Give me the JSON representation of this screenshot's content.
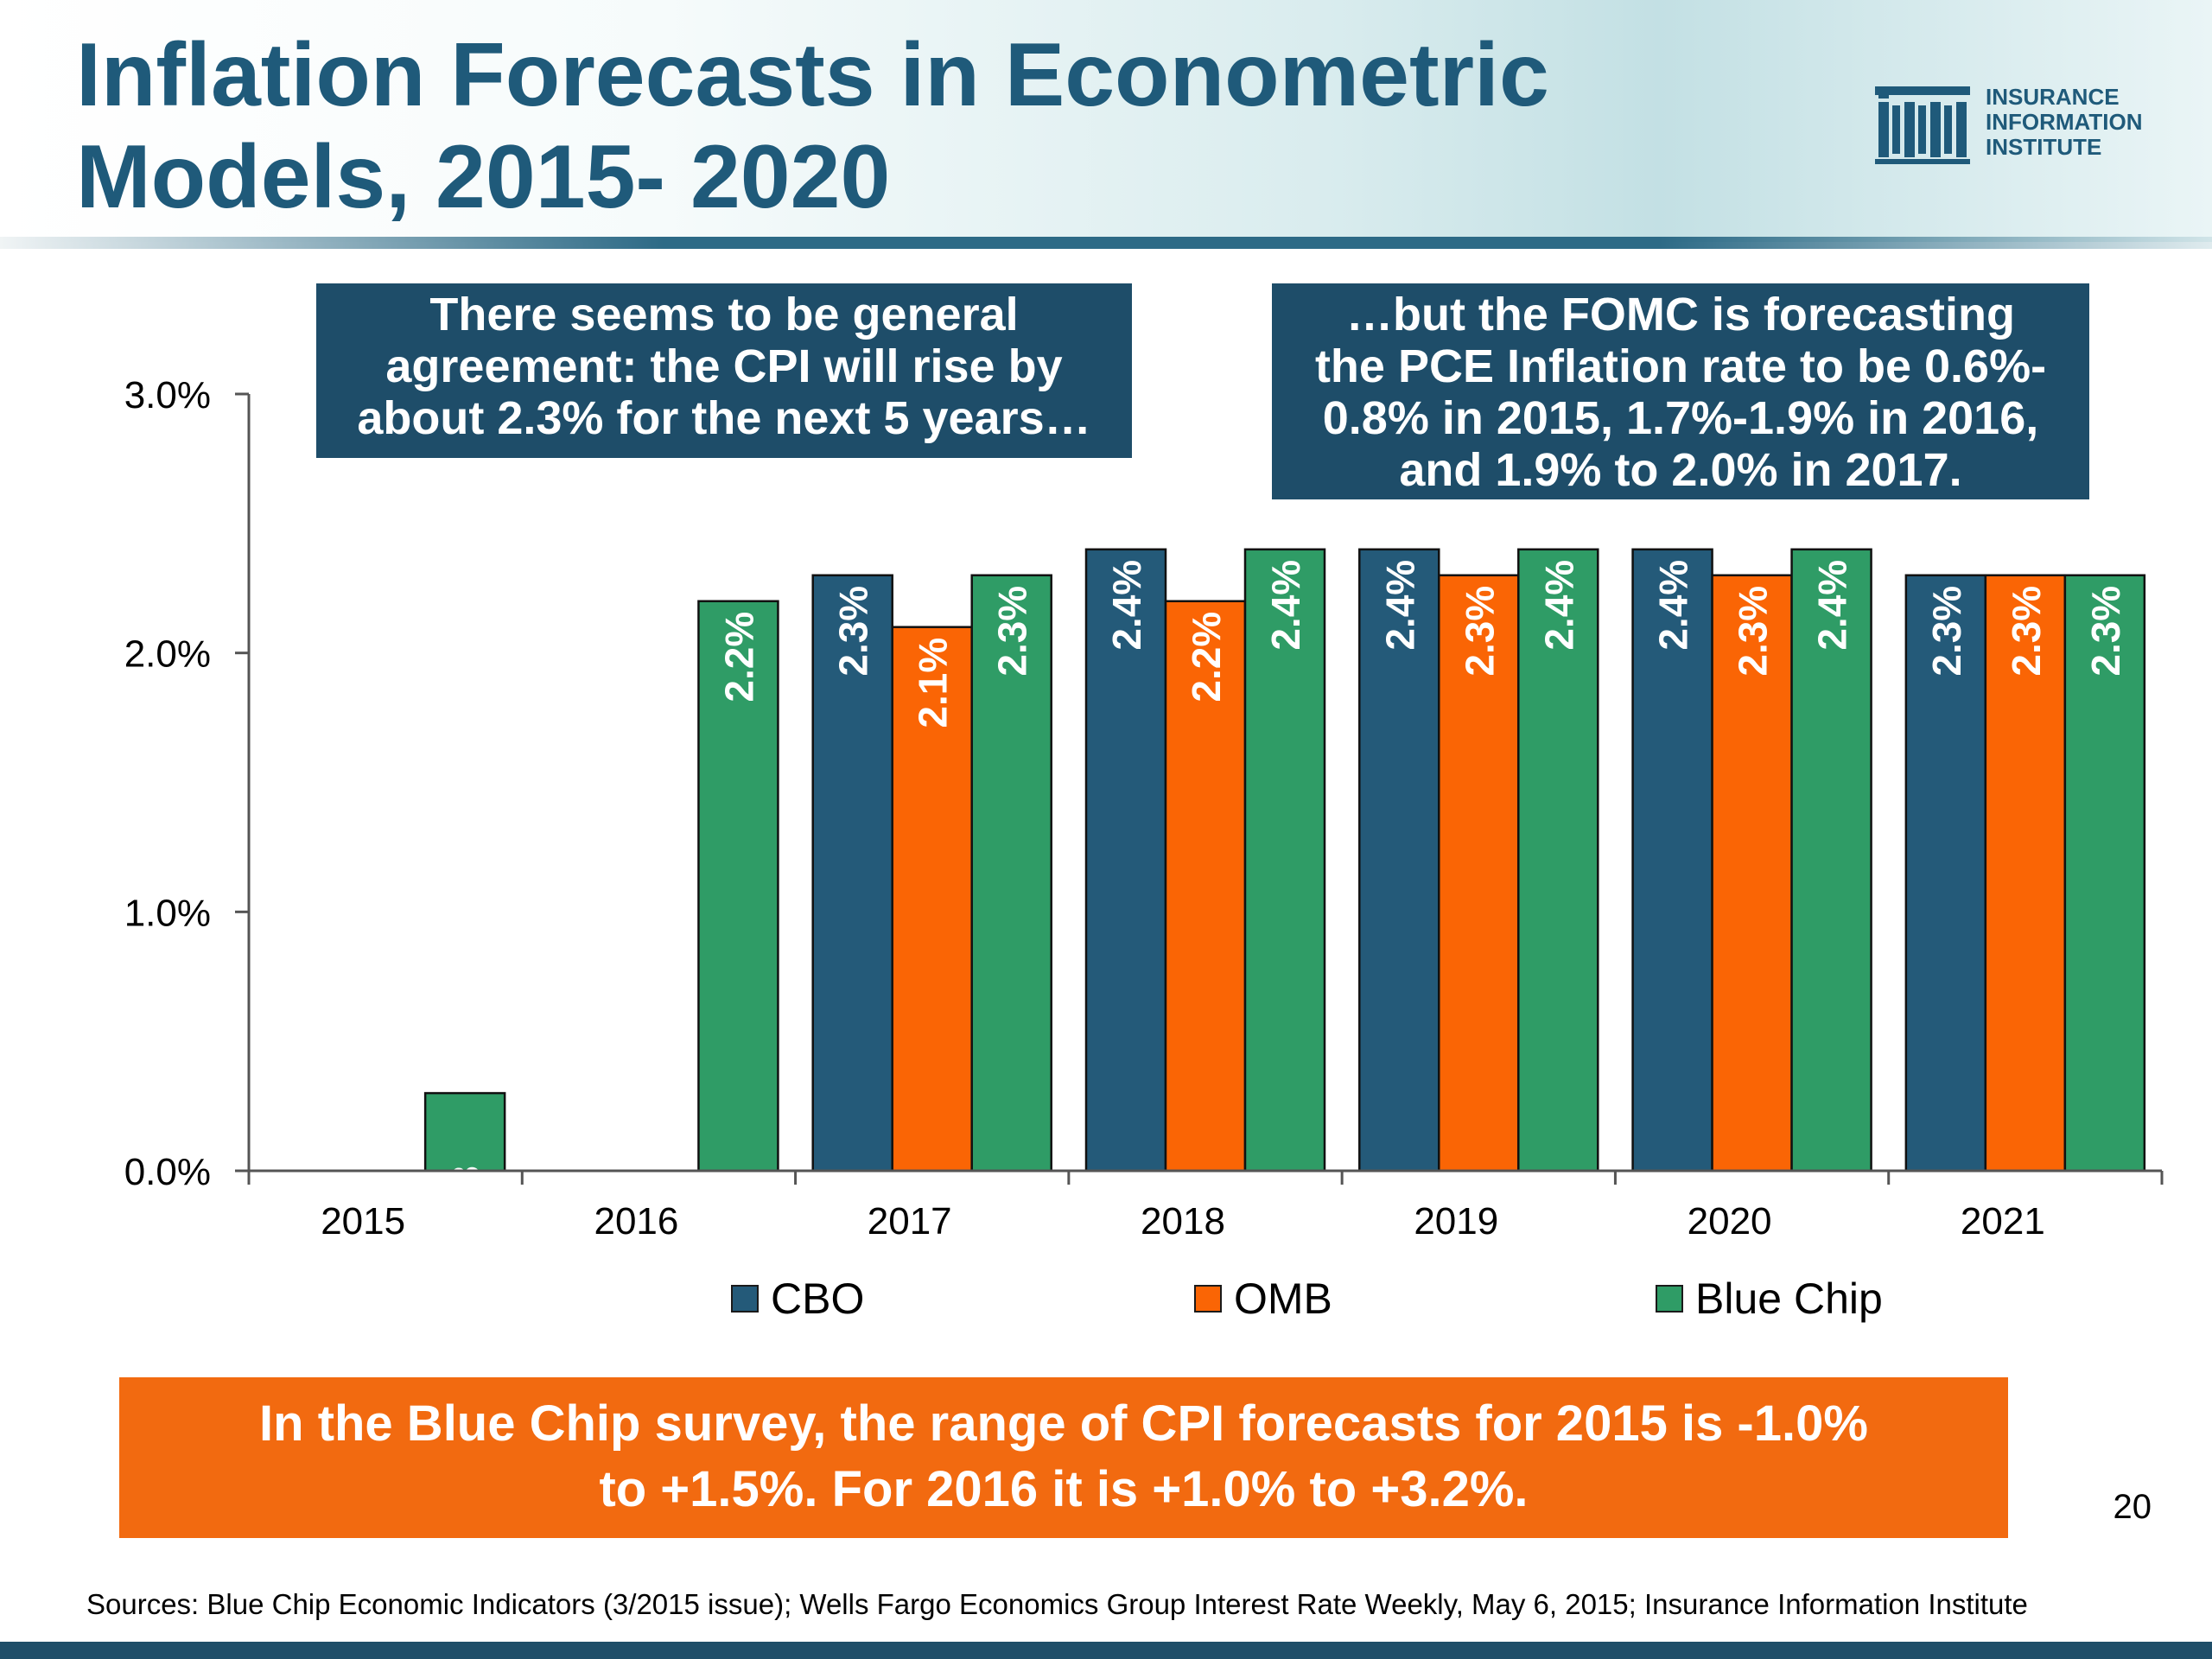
{
  "header": {
    "title_line1": "Inflation Forecasts in Econometric",
    "title_line2": "Models, 2015- 2020",
    "logo": {
      "line1": "INSURANCE",
      "line2": "INFORMATION",
      "line3": "INSTITUTE",
      "color": "#1f5a7a",
      "mark_icon": "iii-logo-icon"
    }
  },
  "callouts": {
    "left": [
      "There seems to be general",
      "agreement: the CPI will rise by",
      "about 2.3% for the next 5 years…"
    ],
    "right": [
      "…but the FOMC is forecasting",
      "the PCE Inflation rate to be 0.6%-",
      "0.8% in 2015, 1.7%-1.9% in 2016,",
      "and 1.9% to 2.0% in 2017."
    ],
    "color": "#1e4d69"
  },
  "chart_data": {
    "type": "bar",
    "categories": [
      "2015",
      "2016",
      "2017",
      "2018",
      "2019",
      "2020",
      "2021"
    ],
    "series": [
      {
        "name": "CBO",
        "color": "#245a79",
        "values": [
          null,
          null,
          2.3,
          2.4,
          2.4,
          2.4,
          2.3
        ],
        "labels": [
          null,
          null,
          "2.3%",
          "2.4%",
          "2.4%",
          "2.4%",
          "2.3%"
        ]
      },
      {
        "name": "OMB",
        "color": "#fa6505",
        "values": [
          null,
          null,
          2.1,
          2.2,
          2.3,
          2.3,
          2.3
        ],
        "labels": [
          null,
          null,
          "2.1%",
          "2.2%",
          "2.3%",
          "2.3%",
          "2.3%"
        ]
      },
      {
        "name": "Blue Chip",
        "color": "#2f9c66",
        "values": [
          0.3,
          2.2,
          2.3,
          2.4,
          2.4,
          2.4,
          2.3
        ],
        "labels": [
          "0.3",
          "2.2%",
          "2.3%",
          "2.4%",
          "2.4%",
          "2.4%",
          "2.3%"
        ]
      }
    ],
    "y_ticks": [
      "0.0%",
      "1.0%",
      "2.0%",
      "3.0%"
    ],
    "ylim": [
      0,
      3
    ],
    "xlabel": "",
    "ylabel": "",
    "grid": false,
    "legend_position": "bottom"
  },
  "banner": {
    "line1": "In the Blue Chip survey, the range of CPI forecasts for 2015 is -1.0%",
    "line2": "to +1.5%. For 2016 it is +1.0% to +3.2%.",
    "color": "#f26a10"
  },
  "page_number": "20",
  "sources": "Sources: Blue Chip Economic Indicators (3/2015 issue); Wells Fargo Economics Group Interest Rate Weekly, May 6, 2015; Insurance Information Institute"
}
